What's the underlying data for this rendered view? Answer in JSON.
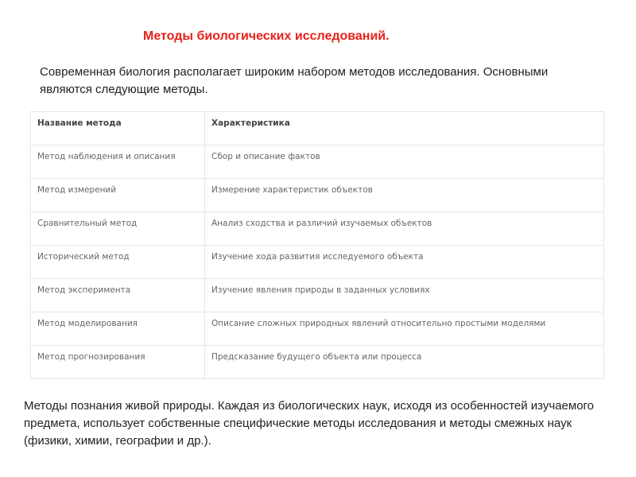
{
  "title": "Методы биологических исследований.",
  "intro": "Современная биология располагает широким набором методов исследования. Основными являются следующие методы.",
  "table": {
    "headers": [
      "Название метода",
      "Характеристика"
    ],
    "rows": [
      [
        "Метод наблюдения и описания",
        "Сбор и описание фактов"
      ],
      [
        "Метод измерений",
        "Измерение характеристик объектов"
      ],
      [
        "Сравнительный метод",
        "Анализ сходства и различий изучаемых объектов"
      ],
      [
        "Исторический метод",
        "Изучение хода развития исследуемого объекта"
      ],
      [
        "Метод эксперимента",
        "Изучение явления природы в заданных условиях"
      ],
      [
        "Метод моделирования",
        "Описание сложных природных явлений относительно простыми моделями"
      ],
      [
        "Метод прогнозирования",
        "Предсказание будущего объекта или процесса"
      ]
    ]
  },
  "outro": "Методы познания живой природы. Каждая из биологических наук, исходя из особенностей изучаемого предмета, использует собственные специфические методы исследования и методы смежных наук (физики, химии, географии и др.).",
  "colors": {
    "title": "#e8221b"
  }
}
